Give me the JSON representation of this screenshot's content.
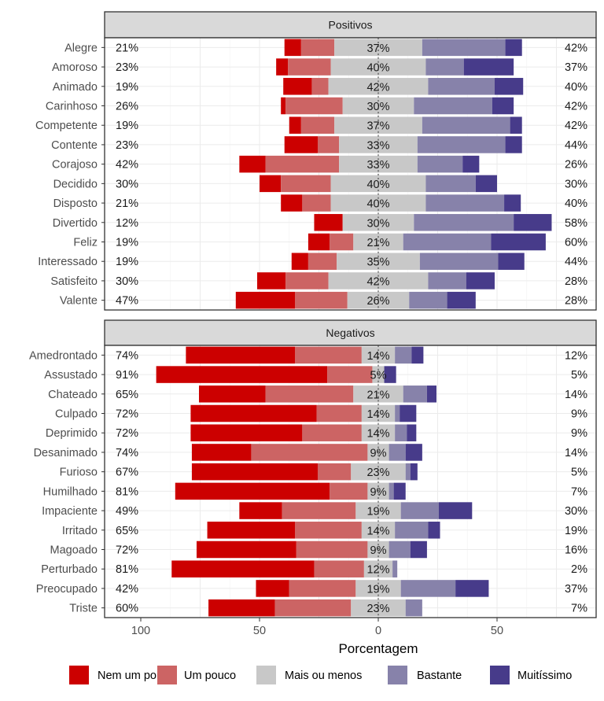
{
  "chart_data": {
    "type": "bar",
    "subtype": "diverging-stacked-horizontal",
    "title": "",
    "xlabel": "Porcentagem",
    "ylabel": "",
    "xlim": [
      -100,
      80
    ],
    "x_ticks": [
      -100,
      -50,
      0,
      50
    ],
    "x_tick_labels": [
      "100",
      "50",
      "0",
      "50"
    ],
    "grid": true,
    "legend_position": "bottom",
    "series_names": [
      "Nem um pouco",
      "Um pouco",
      "Mais ou menos",
      "Bastante",
      "Muitíssimo"
    ],
    "colors": {
      "Nem um pouco": "#cc0000",
      "Um pouco": "#cc6464",
      "Mais ou menos": "#c8c8c8",
      "Bastante": "#8782aa",
      "Muitíssimo": "#473b8a"
    },
    "panels": [
      {
        "title": "Positivos",
        "categories": [
          "Alegre",
          "Amoroso",
          "Animado",
          "Carinhoso",
          "Competente",
          "Contente",
          "Corajoso",
          "Decidido",
          "Disposto",
          "Divertido",
          "Feliz",
          "Interessado",
          "Satisfeito",
          "Valente"
        ],
        "series": [
          {
            "name": "Nem um pouco",
            "values": [
              7,
              5,
              12,
              2,
              5,
              14,
              11,
              9,
              9,
              12,
              9,
              7,
              12,
              25
            ]
          },
          {
            "name": "Um pouco",
            "values": [
              14,
              18,
              7,
              24,
              14,
              9,
              31,
              21,
              12,
              0,
              10,
              12,
              18,
              22
            ]
          },
          {
            "name": "Mais ou menos",
            "values": [
              37,
              40,
              42,
              30,
              37,
              33,
              33,
              40,
              40,
              30,
              21,
              35,
              42,
              26
            ]
          },
          {
            "name": "Bastante",
            "values": [
              35,
              16,
              28,
              33,
              37,
              37,
              19,
              21,
              33,
              42,
              37,
              33,
              16,
              16
            ]
          },
          {
            "name": "Muitíssimo",
            "values": [
              7,
              21,
              12,
              9,
              5,
              7,
              7,
              9,
              7,
              16,
              23,
              11,
              12,
              12
            ]
          }
        ],
        "left_labels": [
          "21%",
          "23%",
          "19%",
          "26%",
          "19%",
          "23%",
          "42%",
          "30%",
          "21%",
          "12%",
          "19%",
          "19%",
          "30%",
          "47%"
        ],
        "center_labels": [
          "37%",
          "40%",
          "42%",
          "30%",
          "37%",
          "33%",
          "33%",
          "40%",
          "40%",
          "30%",
          "21%",
          "35%",
          "42%",
          "26%"
        ],
        "right_labels": [
          "42%",
          "37%",
          "40%",
          "42%",
          "42%",
          "44%",
          "26%",
          "30%",
          "40%",
          "58%",
          "60%",
          "44%",
          "28%",
          "28%"
        ]
      },
      {
        "title": "Negativos",
        "categories": [
          "Amedrontado",
          "Assustado",
          "Chateado",
          "Culpado",
          "Deprimido",
          "Desanimado",
          "Furioso",
          "Humilhado",
          "Impaciente",
          "Irritado",
          "Magoado",
          "Perturbado",
          "Preocupado",
          "Triste"
        ],
        "series": [
          {
            "name": "Nem um pouco",
            "values": [
              46,
              72,
              28,
              53,
              47,
              25,
              53,
              65,
              18,
              37,
              42,
              60,
              14,
              28
            ]
          },
          {
            "name": "Um pouco",
            "values": [
              28,
              19,
              37,
              19,
              25,
              49,
              14,
              16,
              31,
              28,
              30,
              21,
              28,
              32
            ]
          },
          {
            "name": "Mais ou menos",
            "values": [
              14,
              5,
              21,
              14,
              14,
              9,
              23,
              9,
              19,
              14,
              9,
              12,
              19,
              23
            ]
          },
          {
            "name": "Bastante",
            "values": [
              7,
              0,
              10,
              2,
              5,
              7,
              2,
              2,
              16,
              14,
              9,
              2,
              23,
              7
            ]
          },
          {
            "name": "Muitíssimo",
            "values": [
              5,
              5,
              4,
              7,
              4,
              7,
              3,
              5,
              14,
              5,
              7,
              0,
              14,
              0
            ]
          }
        ],
        "left_labels": [
          "74%",
          "91%",
          "65%",
          "72%",
          "72%",
          "74%",
          "67%",
          "81%",
          "49%",
          "65%",
          "72%",
          "81%",
          "42%",
          "60%"
        ],
        "center_labels": [
          "14%",
          "5%",
          "21%",
          "14%",
          "14%",
          "9%",
          "23%",
          "9%",
          "19%",
          "14%",
          "9%",
          "12%",
          "19%",
          "23%"
        ],
        "right_labels": [
          "12%",
          "5%",
          "14%",
          "9%",
          "9%",
          "14%",
          "5%",
          "7%",
          "30%",
          "19%",
          "16%",
          "2%",
          "37%",
          "7%"
        ]
      }
    ]
  }
}
